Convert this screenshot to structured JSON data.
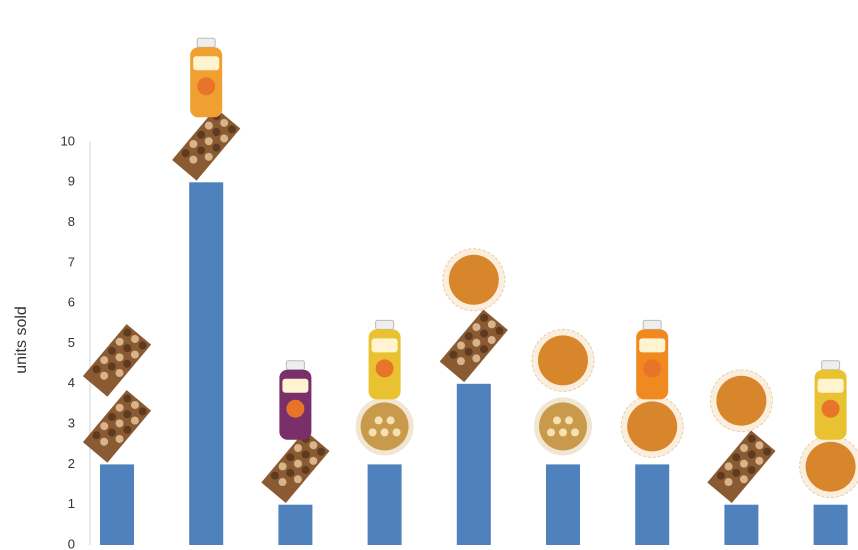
{
  "chart_data": {
    "type": "bar",
    "y_label": "units sold",
    "values": [
      2,
      9,
      1,
      2,
      4,
      2,
      2,
      1,
      1
    ],
    "color": "#4f81bd",
    "ylim": [
      0,
      10
    ],
    "yticks": [
      0,
      1,
      2,
      3,
      4,
      5,
      6,
      7,
      8,
      9,
      10
    ],
    "grid": false
  }
}
